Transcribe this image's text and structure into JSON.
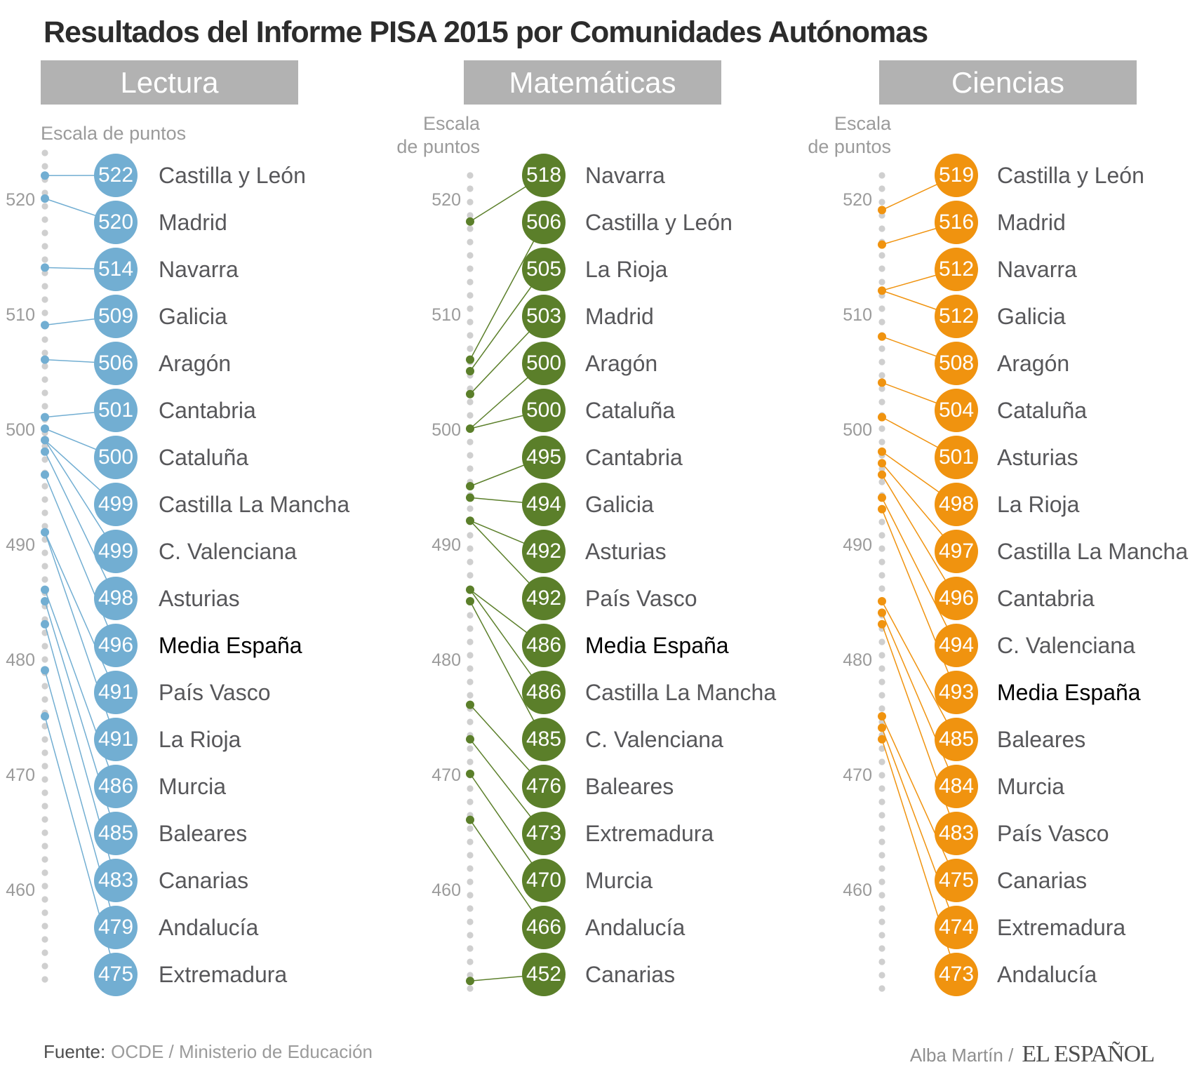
{
  "title": "Resultados del Informe PISA 2015 por Comunidades Autónomas",
  "footer": {
    "source_prefix": "Fuente:",
    "source_rest": "OCDE / Ministerio de Educación",
    "credit_author": "Alba Martín /",
    "credit_brand": "EL ESPAÑOL"
  },
  "chart_data": {
    "type": "scatter",
    "subtype": "ranked-dot-plot",
    "axis_ticks": [
      520,
      510,
      500,
      490,
      480,
      470,
      460
    ],
    "ylim": [
      452,
      524
    ],
    "grid": "dotted-vertical-axis",
    "highlight_label": "Media España",
    "panels": [
      {
        "title": "Lectura",
        "color": "#72aed2",
        "scale_label_lines": [
          "Escala de puntos"
        ],
        "points": [
          {
            "region": "Castilla y León",
            "value": 522
          },
          {
            "region": "Madrid",
            "value": 520
          },
          {
            "region": "Navarra",
            "value": 514
          },
          {
            "region": "Galicia",
            "value": 509
          },
          {
            "region": "Aragón",
            "value": 506
          },
          {
            "region": "Cantabria",
            "value": 501
          },
          {
            "region": "Cataluña",
            "value": 500
          },
          {
            "region": "Castilla La Mancha",
            "value": 499
          },
          {
            "region": "C. Valenciana",
            "value": 499
          },
          {
            "region": "Asturias",
            "value": 498
          },
          {
            "region": "Media España",
            "value": 496
          },
          {
            "region": "País Vasco",
            "value": 491
          },
          {
            "region": "La Rioja",
            "value": 491
          },
          {
            "region": "Murcia",
            "value": 486
          },
          {
            "region": "Baleares",
            "value": 485
          },
          {
            "region": "Canarias",
            "value": 483
          },
          {
            "region": "Andalucía",
            "value": 479
          },
          {
            "region": "Extremadura",
            "value": 475
          }
        ]
      },
      {
        "title": "Matemáticas",
        "color": "#5b7f2a",
        "scale_label_lines": [
          "Escala",
          "de puntos"
        ],
        "points": [
          {
            "region": "Navarra",
            "value": 518
          },
          {
            "region": "Castilla y León",
            "value": 506
          },
          {
            "region": "La Rioja",
            "value": 505
          },
          {
            "region": "Madrid",
            "value": 503
          },
          {
            "region": "Aragón",
            "value": 500
          },
          {
            "region": "Cataluña",
            "value": 500
          },
          {
            "region": "Cantabria",
            "value": 495
          },
          {
            "region": "Galicia",
            "value": 494
          },
          {
            "region": "Asturias",
            "value": 492
          },
          {
            "region": "País Vasco",
            "value": 492
          },
          {
            "region": "Media España",
            "value": 486
          },
          {
            "region": "Castilla La Mancha",
            "value": 486
          },
          {
            "region": "C. Valenciana",
            "value": 485
          },
          {
            "region": "Baleares",
            "value": 476
          },
          {
            "region": "Extremadura",
            "value": 473
          },
          {
            "region": "Murcia",
            "value": 470
          },
          {
            "region": "Andalucía",
            "value": 466
          },
          {
            "region": "Canarias",
            "value": 452
          }
        ]
      },
      {
        "title": "Ciencias",
        "color": "#f0930f",
        "scale_label_lines": [
          "Escala",
          "de puntos"
        ],
        "points": [
          {
            "region": "Castilla y León",
            "value": 519
          },
          {
            "region": "Madrid",
            "value": 516
          },
          {
            "region": "Navarra",
            "value": 512
          },
          {
            "region": "Galicia",
            "value": 512
          },
          {
            "region": "Aragón",
            "value": 508
          },
          {
            "region": "Cataluña",
            "value": 504
          },
          {
            "region": "Asturias",
            "value": 501
          },
          {
            "region": "La Rioja",
            "value": 498
          },
          {
            "region": "Castilla La Mancha",
            "value": 497
          },
          {
            "region": "Cantabria",
            "value": 496
          },
          {
            "region": "C. Valenciana",
            "value": 494
          },
          {
            "region": "Media España",
            "value": 493
          },
          {
            "region": "Baleares",
            "value": 485
          },
          {
            "region": "Murcia",
            "value": 484
          },
          {
            "region": "País Vasco",
            "value": 483
          },
          {
            "region": "Canarias",
            "value": 475
          },
          {
            "region": "Extremadura",
            "value": 474
          },
          {
            "region": "Andalucía",
            "value": 473
          }
        ]
      }
    ]
  }
}
